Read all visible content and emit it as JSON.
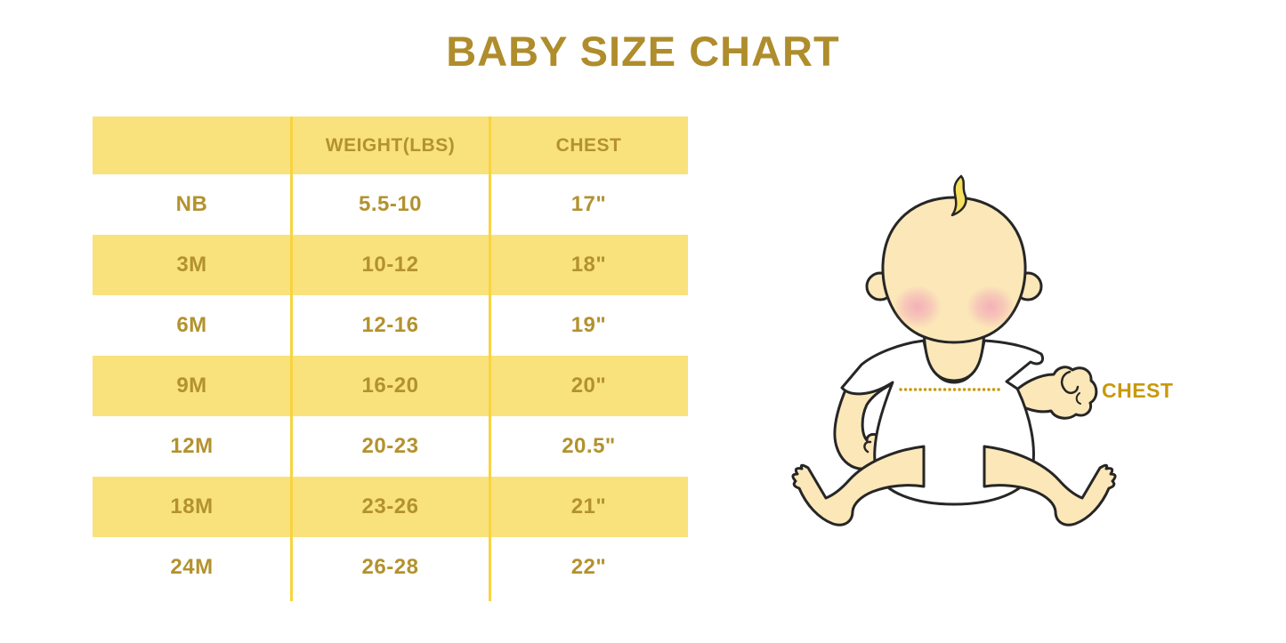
{
  "page": {
    "title": "BABY SIZE CHART"
  },
  "chart_data": {
    "type": "table",
    "title": "BABY SIZE CHART",
    "columns": [
      "",
      "WEIGHT(LBS)",
      "CHEST"
    ],
    "rows": [
      {
        "size": "NB",
        "weight": "5.5-10",
        "chest": "17\""
      },
      {
        "size": "3M",
        "weight": "10-12",
        "chest": "18\""
      },
      {
        "size": "6M",
        "weight": "12-16",
        "chest": "19\""
      },
      {
        "size": "9M",
        "weight": "16-20",
        "chest": "20\""
      },
      {
        "size": "12M",
        "weight": "20-23",
        "chest": "20.5\""
      },
      {
        "size": "18M",
        "weight": "23-26",
        "chest": "21\""
      },
      {
        "size": "24M",
        "weight": "26-28",
        "chest": "22\""
      }
    ]
  },
  "illustration": {
    "chest_label": "CHEST"
  },
  "colors": {
    "title_gold": "#AF8D2C",
    "table_text_gold": "#B3922E",
    "row_yellow": "#F9E27C",
    "divider_yellow": "#F7D440",
    "chest_label_gold": "#C8990B",
    "baby_skin": "#FBE7B8",
    "baby_hair_yellow": "#F6E05E",
    "baby_blush_pink": "#F2A3B8",
    "baby_shirt_white": "#FFFFFF",
    "outline_black": "#262626",
    "background": "#FFFFFF"
  }
}
